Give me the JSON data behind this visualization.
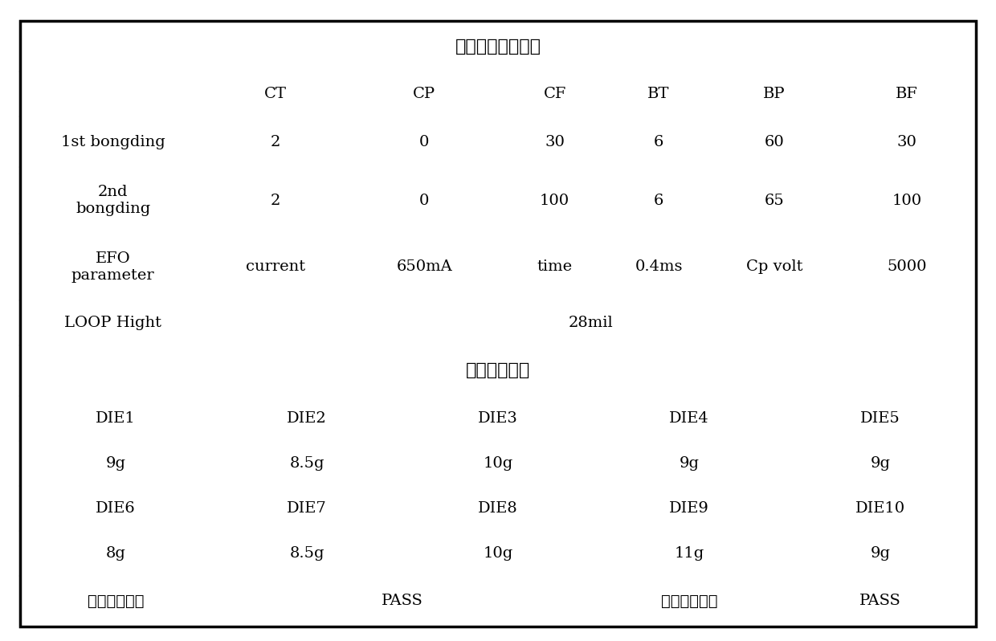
{
  "title1": "焊线设备调整参数",
  "title2": "拉力检测结果",
  "header_row": [
    "",
    "CT",
    "CP",
    "CF",
    "BT",
    "BP",
    "BF"
  ],
  "row1": [
    "1st bongding",
    "2",
    "0",
    "30",
    "6",
    "60",
    "30"
  ],
  "row2_label": "2nd\nbongding",
  "row2_data": [
    "2",
    "0",
    "100",
    "6",
    "65",
    "100"
  ],
  "row3_label": "EFO\nparameter",
  "row3_data": [
    "current",
    "650mA",
    "time",
    "0.4ms",
    "Cp volt",
    "5000"
  ],
  "row4_label": "LOOP Hight",
  "row4_data": "28mil",
  "die_row1": [
    "DIE1",
    "DIE2",
    "DIE3",
    "DIE4",
    "DIE5"
  ],
  "val_row1": [
    "9g",
    "8.5g",
    "10g",
    "9g",
    "9g"
  ],
  "die_row2": [
    "DIE6",
    "DIE7",
    "DIE8",
    "DIE9",
    "DIE10"
  ],
  "val_row2": [
    "8g",
    "8.5g",
    "10g",
    "11g",
    "9g"
  ],
  "bottom_row": [
    "拉力实验结果",
    "PASS",
    "弹坑实验结果",
    "PASS"
  ],
  "bg_color": "#ffffff",
  "border_color": "#000000",
  "text_color": "#000000",
  "font_size": 14,
  "title_font_size": 16
}
